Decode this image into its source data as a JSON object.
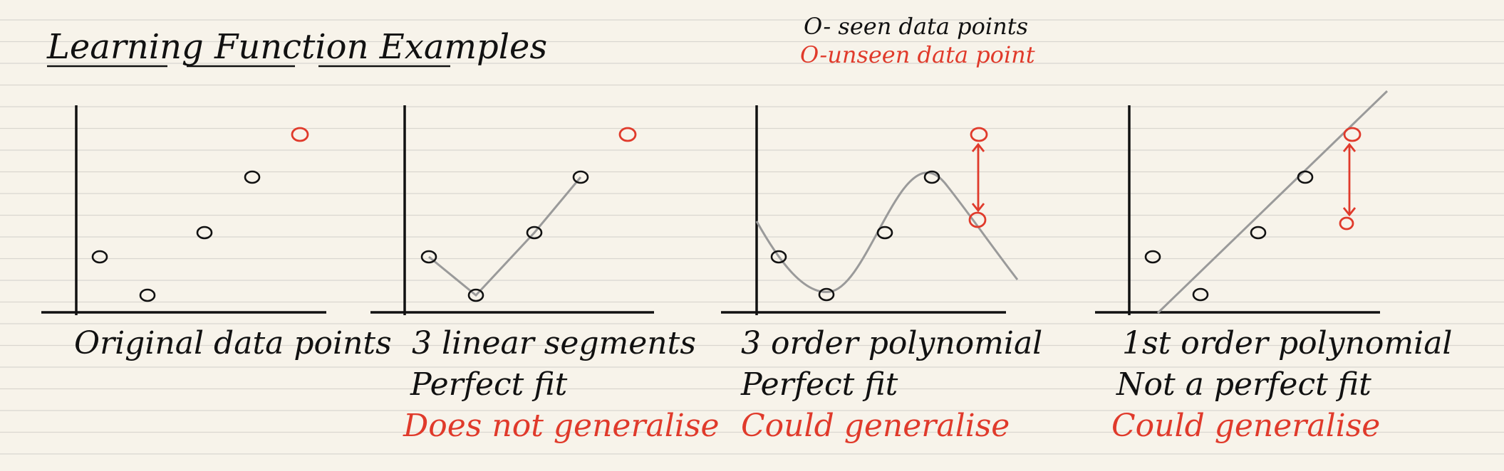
{
  "title": "Learning Function Examples",
  "legend": {
    "seen": "O- seen data points",
    "unseen": "O-unseen data point"
  },
  "colors": {
    "paper": "#f7f3ea",
    "rule_line": "#d9d6d0",
    "ink": "#111111",
    "red": "#e03a2b",
    "fit_line": "#9a9a9a"
  },
  "panels": [
    {
      "id": "original",
      "captions": [
        {
          "text": "Original data points",
          "color": "ink"
        }
      ]
    },
    {
      "id": "linear-segments",
      "captions": [
        {
          "text": "3 linear segments",
          "color": "ink"
        },
        {
          "text": "Perfect fit",
          "color": "ink"
        },
        {
          "text": "Does not generalise",
          "color": "red"
        }
      ]
    },
    {
      "id": "third-order",
      "captions": [
        {
          "text": "3 order polynomial",
          "color": "ink"
        },
        {
          "text": "Perfect fit",
          "color": "ink"
        },
        {
          "text": "Could generalise",
          "color": "red"
        }
      ]
    },
    {
      "id": "first-order",
      "captions": [
        {
          "text": "1st order polynomial",
          "color": "ink"
        },
        {
          "text": "Not a perfect fit",
          "color": "ink"
        },
        {
          "text": "Could generalise",
          "color": "red"
        }
      ]
    }
  ]
}
